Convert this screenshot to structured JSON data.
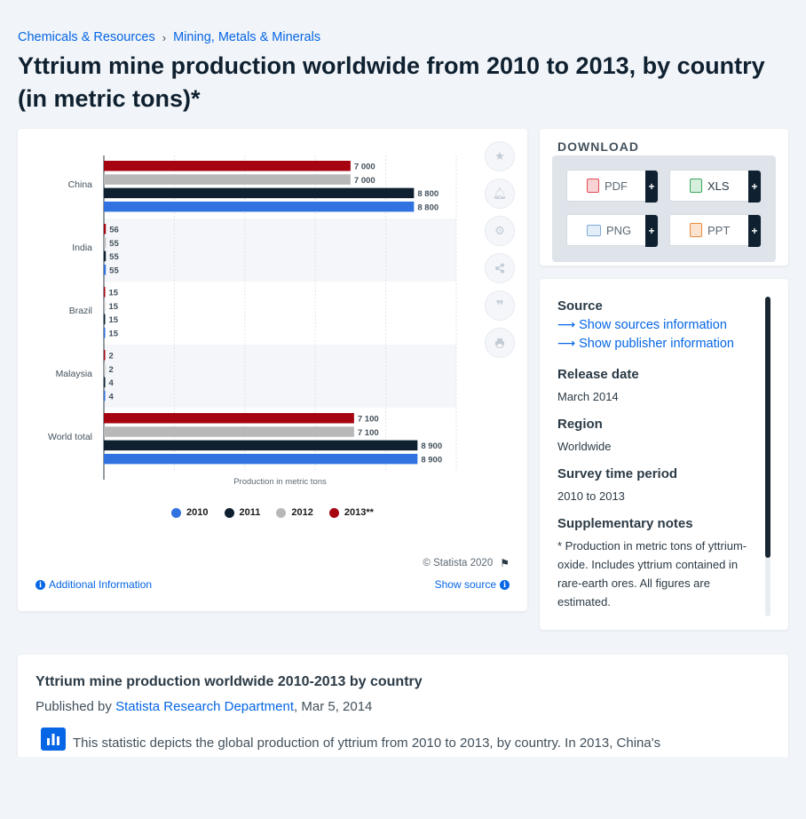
{
  "breadcrumb": [
    {
      "label": "Chemicals & Resources"
    },
    {
      "label": "Mining, Metals & Minerals"
    }
  ],
  "page_title": "Yttrium mine production worldwide from 2010 to 2013, by country (in metric tons)*",
  "chart_data": {
    "type": "bar",
    "orientation": "horizontal",
    "categories": [
      "China",
      "India",
      "Brazil",
      "Malaysia",
      "World total"
    ],
    "series": [
      {
        "name": "2013**",
        "color": "#a50410",
        "values": [
          7000,
          56,
          15,
          2,
          7100
        ],
        "labels": [
          "7 000",
          "56",
          "15",
          "2",
          "7 100"
        ]
      },
      {
        "name": "2012",
        "color": "#b8b8b8",
        "values": [
          7000,
          55,
          15,
          2,
          7100
        ],
        "labels": [
          "7 000",
          "55",
          "15",
          "2",
          "7 100"
        ]
      },
      {
        "name": "2011",
        "color": "#0f2130",
        "values": [
          8800,
          55,
          15,
          4,
          8900
        ],
        "labels": [
          "8 800",
          "55",
          "15",
          "4",
          "8 900"
        ]
      },
      {
        "name": "2010",
        "color": "#2f72e0",
        "values": [
          8800,
          55,
          15,
          4,
          8900
        ],
        "labels": [
          "8 800",
          "55",
          "15",
          "4",
          "8 900"
        ]
      }
    ],
    "xlabel": "Production in metric tons",
    "xlim": [
      0,
      10000
    ],
    "legend_order": [
      "2010",
      "2011",
      "2012",
      "2013**"
    ],
    "legend_position": "bottom",
    "grid": true
  },
  "chart_footer": {
    "copyright": "© Statista 2020",
    "additional_info": "Additional Information",
    "show_source": "Show source"
  },
  "tools": [
    {
      "icon": "star-icon"
    },
    {
      "icon": "bell-icon"
    },
    {
      "icon": "gear-icon"
    },
    {
      "icon": "share-icon"
    },
    {
      "icon": "quote-icon"
    },
    {
      "icon": "print-icon"
    }
  ],
  "download": {
    "title": "DOWNLOAD",
    "buttons": [
      {
        "label": "PDF",
        "color": "#e14c55"
      },
      {
        "label": "XLS",
        "color": "#3aa65c"
      },
      {
        "label": "PNG",
        "color": "#7fa9d6"
      },
      {
        "label": "PPT",
        "color": "#e98a3c"
      }
    ],
    "plus": "+"
  },
  "metadata": {
    "source_heading": "Source",
    "show_sources": "Show sources information",
    "show_publisher": "Show publisher information",
    "release_date_heading": "Release date",
    "release_date": "March 2014",
    "region_heading": "Region",
    "region": "Worldwide",
    "survey_period_heading": "Survey time period",
    "survey_period": "2010 to 2013",
    "notes_heading": "Supplementary notes",
    "notes": "* Production in metric tons of yttrium-oxide. Includes yttrium contained in rare-earth ores. All figures are estimated."
  },
  "description": {
    "title": "Yttrium mine production worldwide 2010-2013 by country",
    "published_by_prefix": "Published by",
    "publisher": "Statista Research Department",
    "date": ", Mar 5, 2014",
    "text": "This statistic depicts the global production of yttrium from 2010 to 2013, by country. In 2013, China's"
  }
}
